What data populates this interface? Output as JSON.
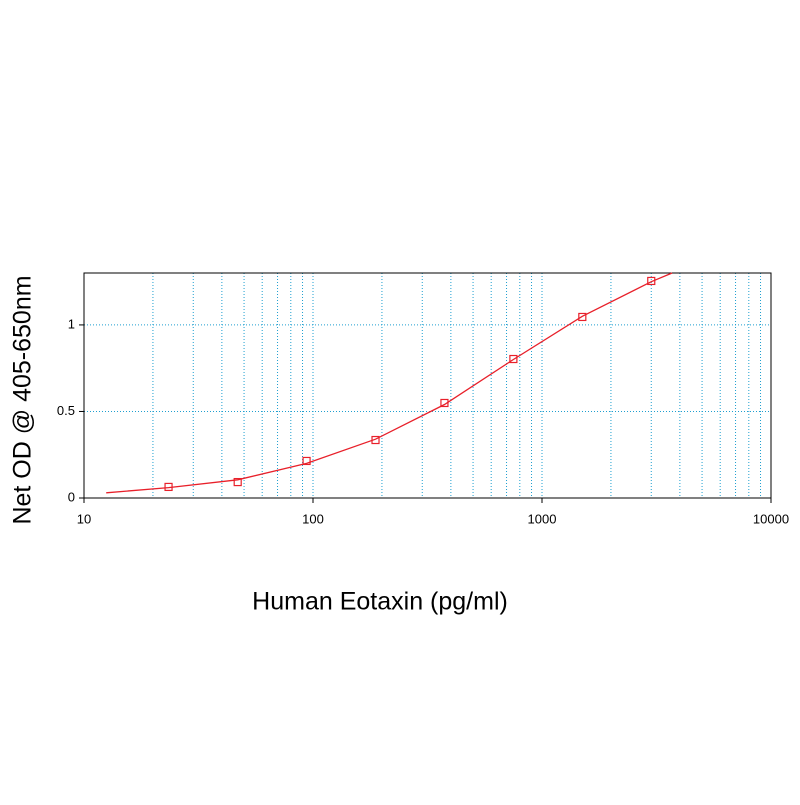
{
  "chart_data": {
    "type": "scatter",
    "x_label": "Human Eotaxin (pg/ml)",
    "y_label": "Net OD @ 405-650nm",
    "log_x": true,
    "xlim": [
      10,
      10000
    ],
    "ylim": [
      0,
      1.3
    ],
    "xticks": [
      10,
      100,
      1000,
      10000
    ],
    "xticks_minor": [
      20,
      30,
      40,
      50,
      60,
      70,
      80,
      90,
      200,
      300,
      400,
      500,
      600,
      700,
      800,
      900,
      2000,
      3000,
      4000,
      5000,
      6000,
      7000,
      8000,
      9000
    ],
    "yticks": [
      0,
      0.5,
      1
    ],
    "grid": true,
    "grid_color": "#1e9fd0",
    "series": [
      {
        "color": "#e8202a",
        "x": [
          23.4,
          46.9,
          93.75,
          187.5,
          375,
          750,
          1500,
          3000
        ],
        "values": [
          0.064,
          0.092,
          0.214,
          0.335,
          0.549,
          0.803,
          1.046,
          1.254
        ]
      }
    ],
    "fit": {
      "color": "#e8202a",
      "x": [
        12.5,
        23.4,
        46.9,
        93.75,
        187.5,
        375,
        750,
        1500,
        3000,
        3700
      ],
      "values": [
        0.03,
        0.06,
        0.105,
        0.2,
        0.34,
        0.54,
        0.8,
        1.05,
        1.25,
        1.3
      ]
    }
  }
}
